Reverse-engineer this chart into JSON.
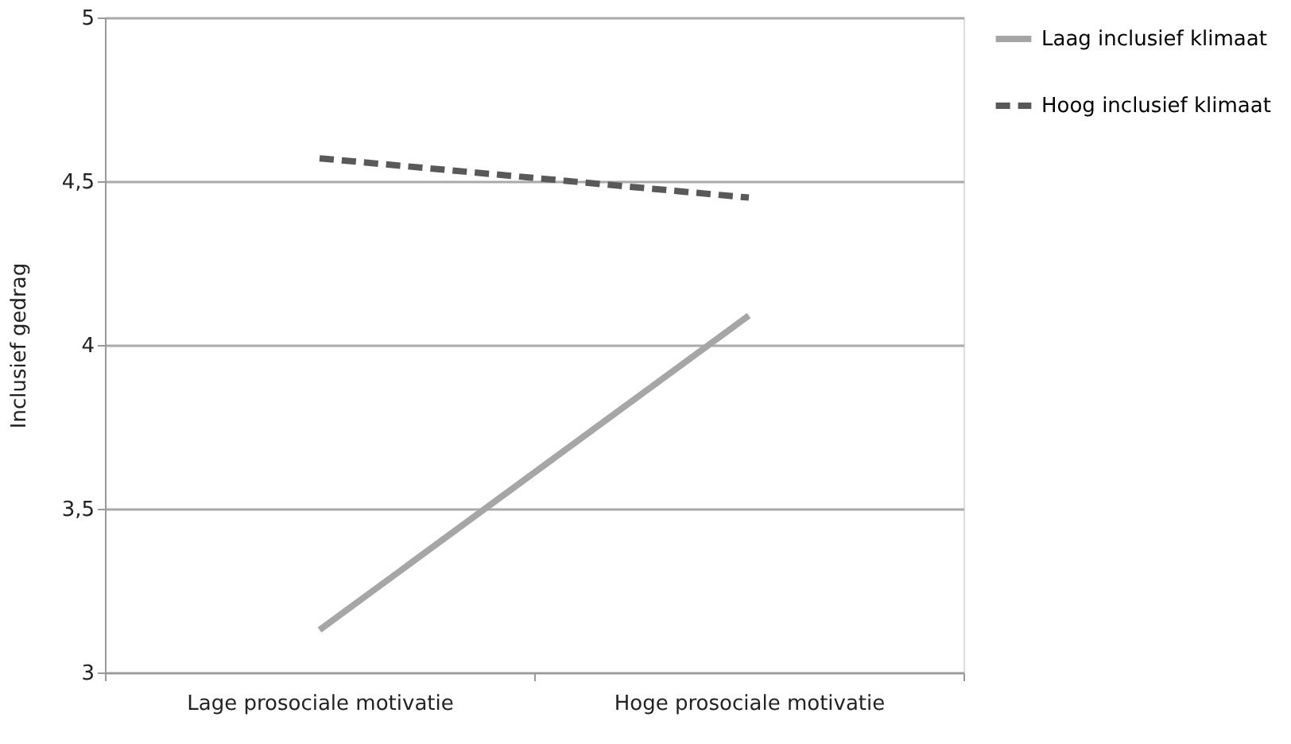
{
  "chart_data": {
    "type": "line",
    "ylabel": "Inclusief gedrag",
    "categories": [
      "Lage prosociale motivatie",
      "Hoge prosociale motivatie"
    ],
    "series": [
      {
        "name": "Laag inclusief klimaat",
        "color": "#a6a6a6",
        "line_style": "solid",
        "values": [
          3.13,
          4.09
        ]
      },
      {
        "name": "Hoog inclusief klimaat",
        "color": "#595959",
        "line_style": "dashed",
        "values": [
          4.57,
          4.45
        ]
      }
    ],
    "ylim": [
      3,
      5
    ],
    "yticks": [
      3,
      {
        "value": 3.5,
        "label": "3,5"
      },
      4,
      {
        "value": 4.5,
        "label": "4,5"
      },
      5
    ],
    "grid": "y",
    "legend": "right",
    "marker": "none"
  }
}
